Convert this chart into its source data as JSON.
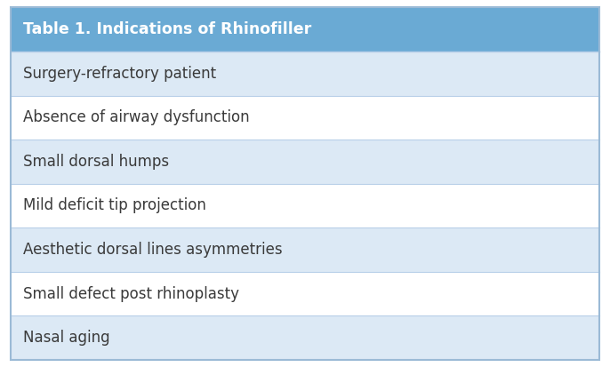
{
  "title": "Table 1. Indications of Rhinofiller",
  "rows": [
    "Surgery-refractory patient",
    "Absence of airway dysfunction",
    "Small dorsal humps",
    "Mild deficit tip projection",
    "Aesthetic dorsal lines asymmetries",
    "Small defect post rhinoplasty",
    "Nasal aging"
  ],
  "header_bg": "#6aaad4",
  "row_colors": [
    "#dce9f5",
    "#ffffff",
    "#dce9f5",
    "#ffffff",
    "#dce9f5",
    "#ffffff",
    "#dce9f5"
  ],
  "header_text_color": "#ffffff",
  "row_text_color": "#3a3a3a",
  "border_color": "#b8cfe8",
  "outer_border_color": "#9bbad6",
  "header_fontsize": 12.5,
  "row_fontsize": 12,
  "fig_width": 6.86,
  "fig_height": 4.13
}
